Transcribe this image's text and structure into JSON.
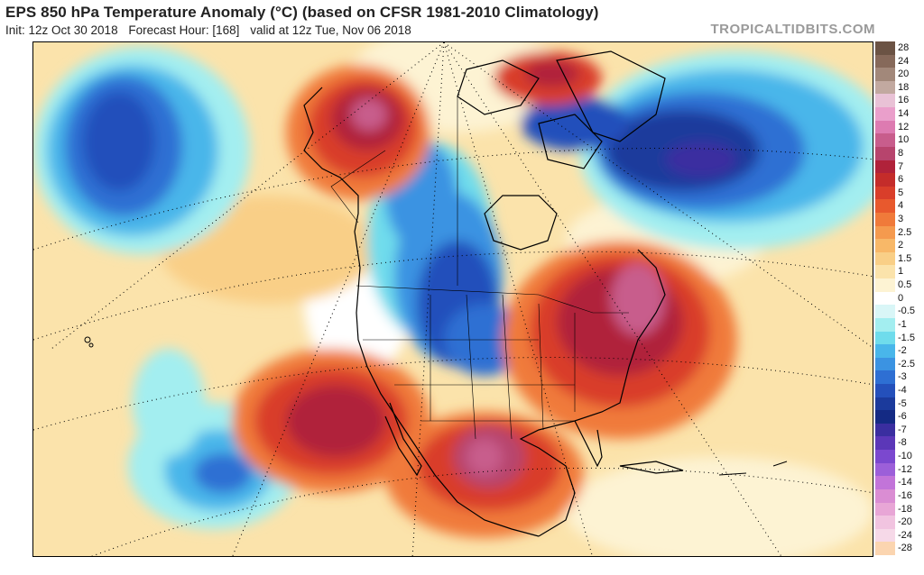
{
  "header": {
    "title": "EPS 850 hPa Temperature Anomaly (°C) (based on CFSR 1981-2010 Climatology)",
    "init": "Init: 12z Oct 30 2018",
    "forecast_hour": "Forecast Hour: [168]",
    "valid": "valid at 12z Tue, Nov 06 2018",
    "brand": "TROPICALTIDBITS.COM"
  },
  "legend": [
    {
      "label": "28",
      "color": "#6b5344"
    },
    {
      "label": "24",
      "color": "#86695a"
    },
    {
      "label": "20",
      "color": "#a2887a"
    },
    {
      "label": "18",
      "color": "#c2a9a0"
    },
    {
      "label": "16",
      "color": "#e9c2d6"
    },
    {
      "label": "14",
      "color": "#ea9fcb"
    },
    {
      "label": "12",
      "color": "#dd7bb1"
    },
    {
      "label": "10",
      "color": "#c85d8c"
    },
    {
      "label": "8",
      "color": "#b7446d"
    },
    {
      "label": "7",
      "color": "#b0223a"
    },
    {
      "label": "6",
      "color": "#c42c2a"
    },
    {
      "label": "5",
      "color": "#d93e2a"
    },
    {
      "label": "4",
      "color": "#e8592d"
    },
    {
      "label": "3",
      "color": "#f07a3a"
    },
    {
      "label": "2.5",
      "color": "#f59a4e"
    },
    {
      "label": "2",
      "color": "#f8b868"
    },
    {
      "label": "1.5",
      "color": "#f9cf87"
    },
    {
      "label": "1",
      "color": "#fbe3ab"
    },
    {
      "label": "0.5",
      "color": "#fdf3d3"
    },
    {
      "label": "0",
      "color": "#ffffff"
    },
    {
      "label": "-0.5",
      "color": "#d9f6f7"
    },
    {
      "label": "-1",
      "color": "#a3eef0"
    },
    {
      "label": "-1.5",
      "color": "#6fdcec"
    },
    {
      "label": "-2",
      "color": "#49b6ea"
    },
    {
      "label": "-2.5",
      "color": "#3b93e2"
    },
    {
      "label": "-3",
      "color": "#2e6fd3"
    },
    {
      "label": "-4",
      "color": "#2450bb"
    },
    {
      "label": "-5",
      "color": "#1b3a9c"
    },
    {
      "label": "-6",
      "color": "#142a84"
    },
    {
      "label": "-7",
      "color": "#3a2ea0"
    },
    {
      "label": "-8",
      "color": "#5b37b8"
    },
    {
      "label": "-10",
      "color": "#7b48cf"
    },
    {
      "label": "-12",
      "color": "#9c5fd9"
    },
    {
      "label": "-14",
      "color": "#c274d9"
    },
    {
      "label": "-16",
      "color": "#da8dd3"
    },
    {
      "label": "-18",
      "color": "#e8a6d6"
    },
    {
      "label": "-20",
      "color": "#f1c4e0"
    },
    {
      "label": "-24",
      "color": "#f6d9e8"
    },
    {
      "label": "-28",
      "color": "#fbd5b0"
    }
  ]
}
